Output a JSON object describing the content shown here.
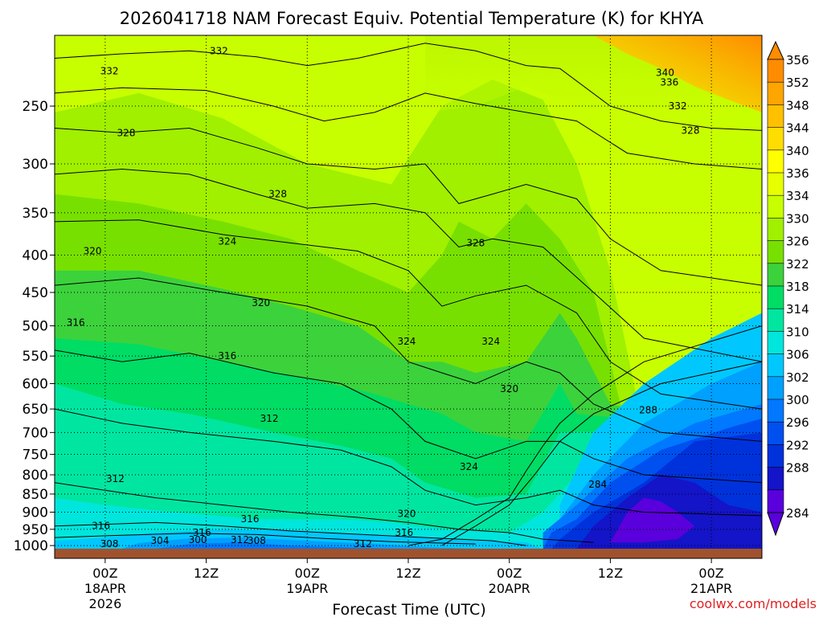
{
  "chart_data": {
    "type": "heatmap",
    "title": "2026041718 NAM Forecast Equiv. Potential Temperature (K) for KHYA",
    "xlabel": "Forecast Time (UTC)",
    "ylabel": "",
    "x_ticks": [
      {
        "line1": "00Z",
        "line2": "18APR",
        "line3": "2026"
      },
      {
        "line1": "12Z",
        "line2": "",
        "line3": ""
      },
      {
        "line1": "00Z",
        "line2": "19APR",
        "line3": ""
      },
      {
        "line1": "12Z",
        "line2": "",
        "line3": ""
      },
      {
        "line1": "00Z",
        "line2": "20APR",
        "line3": ""
      },
      {
        "line1": "12Z",
        "line2": "",
        "line3": ""
      },
      {
        "line1": "00Z",
        "line2": "21APR",
        "line3": ""
      }
    ],
    "x_tick_hours": [
      6,
      18,
      30,
      42,
      54,
      66,
      78
    ],
    "x_range_hours": [
      0,
      84
    ],
    "y_ticks": [
      250,
      300,
      350,
      400,
      450,
      500,
      550,
      600,
      650,
      700,
      750,
      800,
      850,
      900,
      950,
      1000
    ],
    "y_scale": "log-pressure",
    "y_range": [
      1010,
      200
    ],
    "colorbar": {
      "labels": [
        356,
        352,
        348,
        344,
        340,
        336,
        334,
        330,
        326,
        322,
        318,
        314,
        310,
        306,
        302,
        300,
        296,
        292,
        288,
        284
      ],
      "colors": [
        "#ff8c00",
        "#ffa500",
        "#ffc000",
        "#ffdd00",
        "#ffff00",
        "#e8ff00",
        "#c8ff00",
        "#a0f000",
        "#78e000",
        "#3cd23c",
        "#00dc64",
        "#00e6a0",
        "#00e6dc",
        "#00c8ff",
        "#00a0ff",
        "#0078ff",
        "#0050f0",
        "#0032dc",
        "#1414c8",
        "#5a00dc"
      ]
    },
    "contour_labels": [
      {
        "text": "332",
        "hour": 19.5,
        "p": 210
      },
      {
        "text": "332",
        "hour": 6.5,
        "p": 224
      },
      {
        "text": "340",
        "hour": 72.5,
        "p": 225
      },
      {
        "text": "336",
        "hour": 73,
        "p": 232
      },
      {
        "text": "332",
        "hour": 74,
        "p": 250
      },
      {
        "text": "328",
        "hour": 8.5,
        "p": 272
      },
      {
        "text": "328",
        "hour": 75.5,
        "p": 270
      },
      {
        "text": "328",
        "hour": 26.5,
        "p": 330
      },
      {
        "text": "324",
        "hour": 20.5,
        "p": 383
      },
      {
        "text": "328",
        "hour": 50,
        "p": 385
      },
      {
        "text": "320",
        "hour": 4.5,
        "p": 395
      },
      {
        "text": "320",
        "hour": 24.5,
        "p": 465
      },
      {
        "text": "316",
        "hour": 2.5,
        "p": 495
      },
      {
        "text": "324",
        "hour": 41.8,
        "p": 525
      },
      {
        "text": "324",
        "hour": 51.8,
        "p": 525
      },
      {
        "text": "316",
        "hour": 20.5,
        "p": 550
      },
      {
        "text": "320",
        "hour": 54,
        "p": 610
      },
      {
        "text": "288",
        "hour": 70.5,
        "p": 652
      },
      {
        "text": "312",
        "hour": 25.5,
        "p": 670
      },
      {
        "text": "324",
        "hour": 49.2,
        "p": 780
      },
      {
        "text": "312",
        "hour": 7.2,
        "p": 810
      },
      {
        "text": "284",
        "hour": 64.5,
        "p": 825
      },
      {
        "text": "320",
        "hour": 41.8,
        "p": 905
      },
      {
        "text": "316",
        "hour": 23.2,
        "p": 920
      },
      {
        "text": "316",
        "hour": 5.5,
        "p": 940
      },
      {
        "text": "316",
        "hour": 17.5,
        "p": 960
      },
      {
        "text": "316",
        "hour": 41.5,
        "p": 960
      },
      {
        "text": "300",
        "hour": 17,
        "p": 982
      },
      {
        "text": "312",
        "hour": 22,
        "p": 982
      },
      {
        "text": "308",
        "hour": 24,
        "p": 985
      },
      {
        "text": "304",
        "hour": 12.5,
        "p": 985
      },
      {
        "text": "308",
        "hour": 6.5,
        "p": 995
      },
      {
        "text": "312",
        "hour": 36.6,
        "p": 995
      }
    ]
  },
  "credit": "coolwx.com/models"
}
